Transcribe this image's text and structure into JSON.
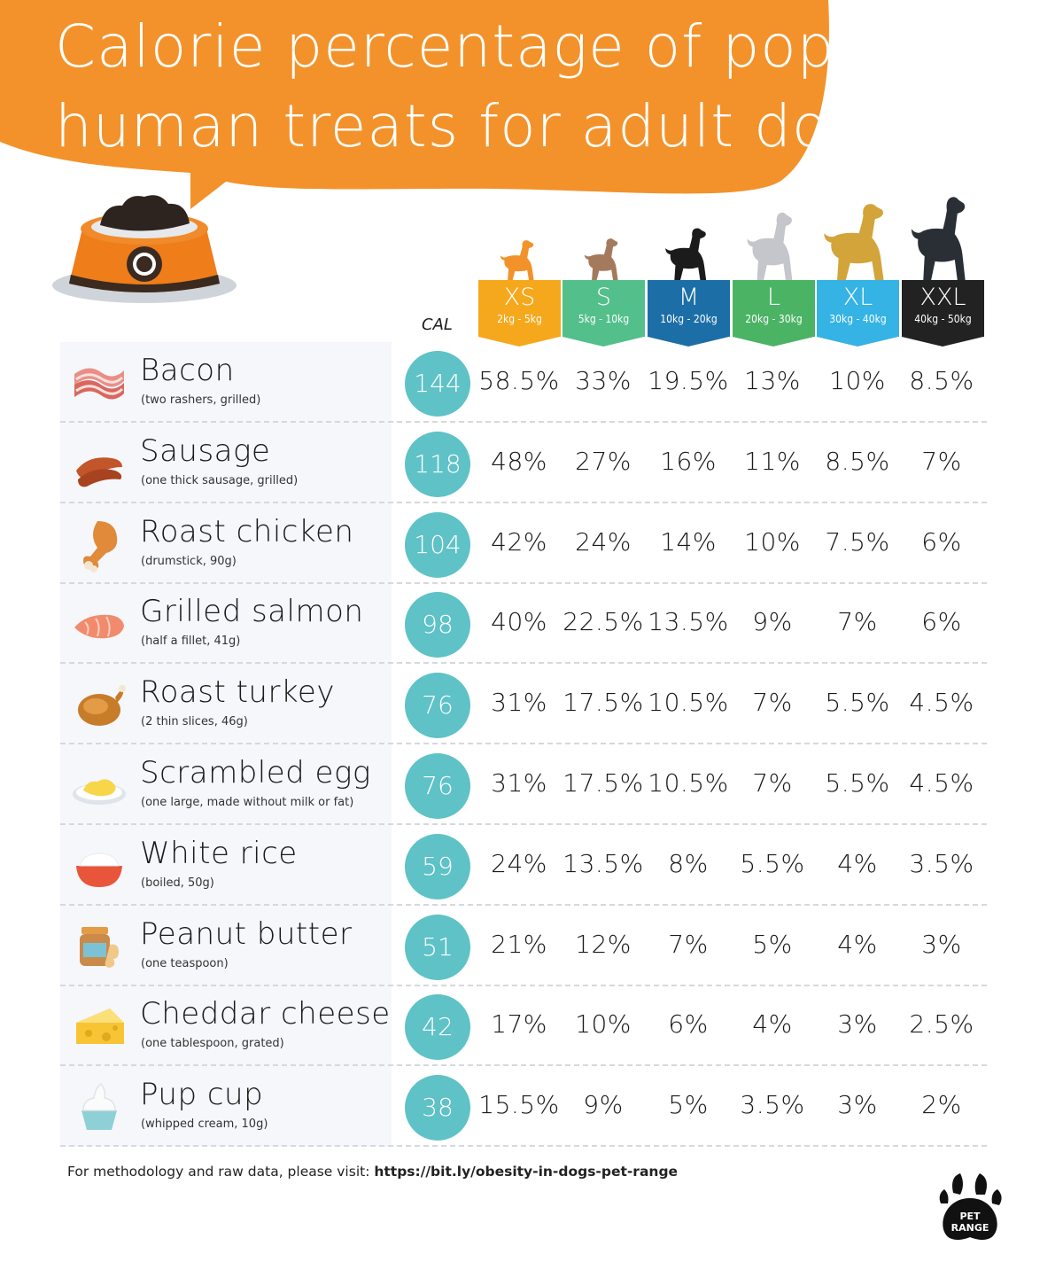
{
  "title_lines": [
    "Calorie percentage of popular",
    "human treats for adult dogs"
  ],
  "colors": {
    "orange": "#f3922a",
    "teal_circle": "#5ec2c7",
    "sizes": [
      "#f6a81c",
      "#53bf8b",
      "#1c6ea7",
      "#4bb364",
      "#34b3e4",
      "#222222"
    ]
  },
  "cal_label": "CAL",
  "footer": {
    "prefix": "For methodology and raw data, please visit: ",
    "link": "https://bit.ly/obesity-in-dogs-pet-range"
  },
  "logo_text": [
    "PET",
    "RANGE"
  ],
  "chart_data": {
    "type": "table",
    "title": "Calorie percentage of popular human treats for adult dogs",
    "size_columns": [
      {
        "code": "XS",
        "range": "2kg - 5kg"
      },
      {
        "code": "S",
        "range": "5kg - 10kg"
      },
      {
        "code": "M",
        "range": "10kg - 20kg"
      },
      {
        "code": "L",
        "range": "20kg - 30kg"
      },
      {
        "code": "XL",
        "range": "30kg - 40kg"
      },
      {
        "code": "XXL",
        "range": "40kg - 50kg"
      }
    ],
    "rows": [
      {
        "name": "Bacon",
        "note": "(two rashers, grilled)",
        "icon": "bacon-icon",
        "cal": "144",
        "pcts": [
          "58.5%",
          "33%",
          "19.5%",
          "13%",
          "10%",
          "8.5%"
        ]
      },
      {
        "name": "Sausage",
        "note": "(one thick sausage, grilled)",
        "icon": "sausage-icon",
        "cal": "118",
        "pcts": [
          "48%",
          "27%",
          "16%",
          "11%",
          "8.5%",
          "7%"
        ]
      },
      {
        "name": "Roast chicken",
        "note": "(drumstick, 90g)",
        "icon": "chicken-drumstick-icon",
        "cal": "104",
        "pcts": [
          "42%",
          "24%",
          "14%",
          "10%",
          "7.5%",
          "6%"
        ]
      },
      {
        "name": "Grilled salmon",
        "note": "(half a fillet, 41g)",
        "icon": "salmon-icon",
        "cal": "98",
        "pcts": [
          "40%",
          "22.5%",
          "13.5%",
          "9%",
          "7%",
          "6%"
        ]
      },
      {
        "name": "Roast turkey",
        "note": "(2 thin slices, 46g)",
        "icon": "turkey-icon",
        "cal": "76",
        "pcts": [
          "31%",
          "17.5%",
          "10.5%",
          "7%",
          "5.5%",
          "4.5%"
        ]
      },
      {
        "name": "Scrambled egg",
        "note": "(one large, made without milk or fat)",
        "icon": "scrambled-egg-icon",
        "cal": "76",
        "pcts": [
          "31%",
          "17.5%",
          "10.5%",
          "7%",
          "5.5%",
          "4.5%"
        ]
      },
      {
        "name": "White rice",
        "note": "(boiled, 50g)",
        "icon": "rice-bowl-icon",
        "cal": "59",
        "pcts": [
          "24%",
          "13.5%",
          "8%",
          "5.5%",
          "4%",
          "3.5%"
        ]
      },
      {
        "name": "Peanut butter",
        "note": "(one teaspoon)",
        "icon": "peanut-butter-icon",
        "cal": "51",
        "pcts": [
          "21%",
          "12%",
          "7%",
          "5%",
          "4%",
          "3%"
        ]
      },
      {
        "name": "Cheddar cheese",
        "note": "(one tablespoon, grated)",
        "icon": "cheese-icon",
        "cal": "42",
        "pcts": [
          "17%",
          "10%",
          "6%",
          "4%",
          "3%",
          "2.5%"
        ]
      },
      {
        "name": "Pup cup",
        "note": "(whipped cream, 10g)",
        "icon": "pup-cup-icon",
        "cal": "38",
        "pcts": [
          "15.5%",
          "9%",
          "5%",
          "3.5%",
          "3%",
          "2%"
        ]
      }
    ]
  }
}
